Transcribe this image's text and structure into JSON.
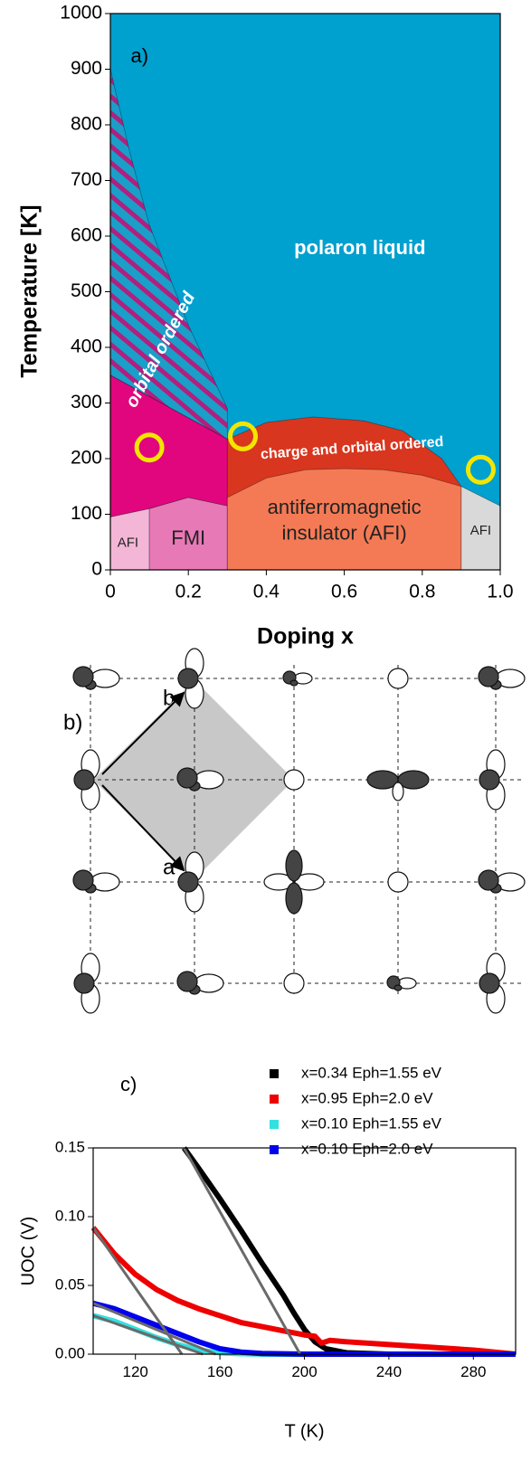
{
  "chart_data": [
    {
      "type": "phase",
      "xlabel": "Doping x",
      "ylabel": "Temperature [K]",
      "xlim": [
        0,
        1
      ],
      "ylim": [
        0,
        1000
      ],
      "xticks": [
        0,
        0.2,
        0.4,
        0.6,
        0.8,
        {
          "value": 1,
          "label": "1.0"
        }
      ],
      "yticks": [
        0,
        100,
        200,
        300,
        400,
        500,
        600,
        700,
        800,
        900,
        1000
      ],
      "regions": [
        {
          "color": "#00a0cf",
          "x": [
            0,
            1,
            1,
            0
          ],
          "y": [
            1000,
            1000,
            0,
            0
          ]
        },
        {
          "color": "#1a9fc9",
          "hatch": "#b0207e",
          "x": [
            0,
            0.05,
            0.1,
            0.2,
            0.3,
            0.3,
            0
          ],
          "y": [
            900,
            750,
            620,
            440,
            290,
            235,
            350
          ]
        },
        {
          "color": "#e2067e",
          "x": [
            0,
            0.3,
            0.3,
            0.2,
            0.1,
            0
          ],
          "y": [
            350,
            235,
            115,
            130,
            110,
            95
          ]
        },
        {
          "color": "#f4b6d6",
          "x": [
            0,
            0.1,
            0.1,
            0
          ],
          "y": [
            0,
            0,
            110,
            95
          ]
        },
        {
          "color": "#e879b7",
          "x": [
            0.1,
            0.3,
            0.3,
            0.2,
            0.1
          ],
          "y": [
            0,
            0,
            115,
            130,
            110
          ]
        },
        {
          "color": "#d8361f",
          "x": [
            0.3,
            0.4,
            0.52,
            0.65,
            0.75,
            0.85,
            0.9,
            0.9,
            0.3
          ],
          "y": [
            235,
            265,
            275,
            268,
            250,
            200,
            150,
            0,
            0
          ]
        },
        {
          "color": "#f47a55",
          "x": [
            0.3,
            0.4,
            0.5,
            0.6,
            0.7,
            0.8,
            0.9,
            0.9,
            0.3
          ],
          "y": [
            130,
            165,
            180,
            182,
            180,
            170,
            150,
            0,
            0
          ]
        },
        {
          "color": "#d9d9d9",
          "x": [
            0.9,
            1,
            1,
            0.9
          ],
          "y": [
            0,
            0,
            115,
            150
          ]
        }
      ],
      "markers": {
        "color": "#f2e600",
        "x": [
          0.1,
          0.34,
          0.95
        ],
        "y": [
          220,
          240,
          180
        ]
      },
      "annotations": [
        "polaron liquid",
        "orbital ordered",
        "charge and orbital ordered",
        "antiferromagnetic",
        "insulator (AFI)",
        "FMI",
        "AFI",
        "AFI",
        "a)"
      ]
    },
    {
      "type": "line",
      "xlabel": "T (K)",
      "ylabel": "UOC (V)",
      "annotation": "c)",
      "xlim": [
        100,
        300
      ],
      "ylim": [
        0,
        0.15
      ],
      "xticks": [
        120,
        160,
        200,
        240,
        280
      ],
      "yticks": [
        {
          "value": 0,
          "label": "0.00"
        },
        0.05,
        {
          "value": 0.1,
          "label": "0.10"
        },
        {
          "value": 0.15,
          "label": "0.15"
        }
      ],
      "series": [
        {
          "name": "x=0.34 Eph=1.55 eV",
          "color": "#000000",
          "x": [
            143,
            150,
            160,
            170,
            180,
            190,
            195,
            200,
            205,
            210,
            220,
            240,
            280,
            300
          ],
          "values": [
            0.15,
            0.135,
            0.113,
            0.09,
            0.066,
            0.043,
            0.03,
            0.018,
            0.009,
            0.004,
            0.001,
            0,
            0,
            0
          ]
        },
        {
          "name": "x=0.95 Eph=2.0 eV",
          "color": "#ee0000",
          "x": [
            100,
            110,
            120,
            130,
            140,
            150,
            160,
            170,
            180,
            190,
            200,
            205,
            208,
            212,
            220,
            240,
            260,
            280,
            300
          ],
          "values": [
            0.092,
            0.073,
            0.058,
            0.047,
            0.039,
            0.033,
            0.028,
            0.023,
            0.02,
            0.017,
            0.014,
            0.013,
            0.008,
            0.01,
            0.009,
            0.007,
            0.005,
            0.003,
            0
          ]
        },
        {
          "name": "x=0.10 Eph=1.55 eV",
          "color": "#33e0e0",
          "x": [
            100,
            110,
            120,
            130,
            140,
            150,
            160,
            170,
            180,
            300
          ],
          "values": [
            0.028,
            0.024,
            0.018,
            0.012,
            0.007,
            0.003,
            0.001,
            0.0003,
            0,
            0
          ]
        },
        {
          "name": "x=0.10 Eph=2.0 eV",
          "color": "#0000ee",
          "x": [
            100,
            110,
            120,
            130,
            140,
            150,
            160,
            170,
            180,
            200,
            300
          ],
          "values": [
            0.037,
            0.033,
            0.027,
            0.021,
            0.015,
            0.009,
            0.004,
            0.0015,
            0.0005,
            0,
            0
          ]
        }
      ],
      "fits": {
        "color": "#6a6a6a",
        "lines": [
          {
            "x": [
              143,
              198
            ],
            "values": [
              0.15,
              0
            ]
          },
          {
            "x": [
              100,
              142
            ],
            "values": [
              0.092,
              0
            ]
          },
          {
            "x": [
              100,
              158
            ],
            "values": [
              0.037,
              0
            ]
          },
          {
            "x": [
              100,
              152
            ],
            "values": [
              0.028,
              0
            ]
          }
        ]
      }
    }
  ],
  "diagram": {
    "label": "b)",
    "vector_a": "a",
    "vector_b": "b"
  }
}
